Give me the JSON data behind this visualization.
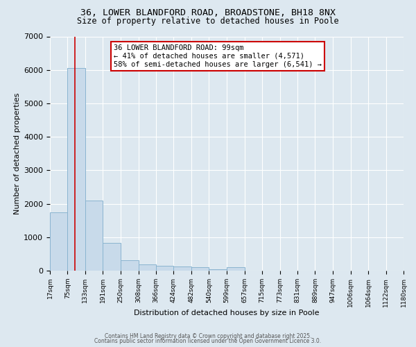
{
  "title_line1": "36, LOWER BLANDFORD ROAD, BROADSTONE, BH18 8NX",
  "title_line2": "Size of property relative to detached houses in Poole",
  "xlabel": "Distribution of detached houses by size in Poole",
  "ylabel": "Number of detached properties",
  "bar_color": "#c8daea",
  "bar_edge_color": "#8ab4d0",
  "background_color": "#dde8f0",
  "grid_color": "#ffffff",
  "bin_edges": [
    17,
    75,
    133,
    191,
    250,
    308,
    366,
    424,
    482,
    540,
    599,
    657,
    715,
    773,
    831,
    889,
    947,
    1006,
    1064,
    1122,
    1180
  ],
  "bar_values": [
    1750,
    6050,
    2100,
    830,
    310,
    190,
    140,
    120,
    110,
    50,
    100,
    0,
    0,
    0,
    0,
    0,
    0,
    0,
    0,
    0
  ],
  "property_size": 99,
  "red_line_color": "#cc0000",
  "annotation_text": "36 LOWER BLANDFORD ROAD: 99sqm\n← 41% of detached houses are smaller (4,571)\n58% of semi-detached houses are larger (6,541) →",
  "annotation_box_color": "#ffffff",
  "annotation_box_edge": "#cc0000",
  "ylim": [
    0,
    7000
  ],
  "yticks": [
    0,
    1000,
    2000,
    3000,
    4000,
    5000,
    6000,
    7000
  ],
  "footer_line1": "Contains HM Land Registry data © Crown copyright and database right 2025.",
  "footer_line2": "Contains public sector information licensed under the Open Government Licence 3.0."
}
